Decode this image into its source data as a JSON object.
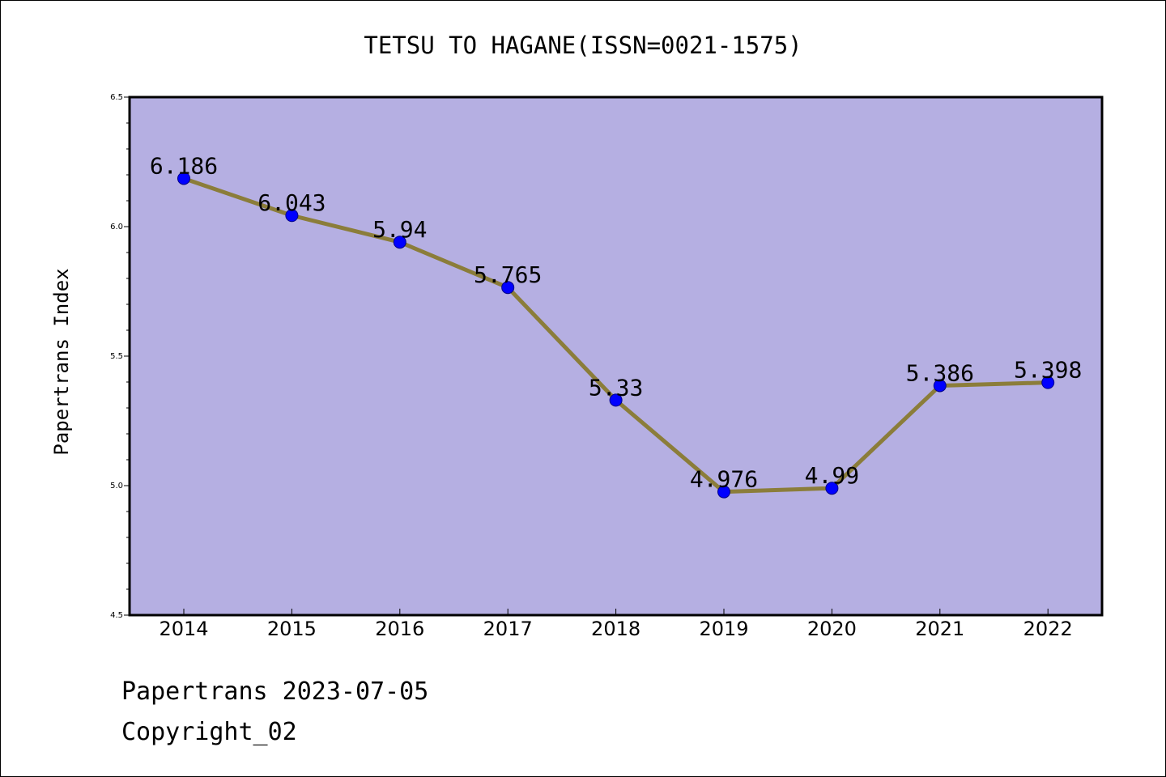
{
  "chart_data": {
    "type": "line",
    "title": "TETSU TO HAGANE(ISSN=0021-1575)",
    "ylabel": "Papertrans Index",
    "xlabel": "",
    "categories": [
      "2014",
      "2015",
      "2016",
      "2017",
      "2018",
      "2019",
      "2020",
      "2021",
      "2022"
    ],
    "values": [
      6.186,
      6.043,
      5.94,
      5.765,
      5.33,
      4.976,
      4.99,
      5.386,
      5.398
    ],
    "data_labels": [
      "6.186",
      "6.043",
      "5.94",
      "5.765",
      "5.33",
      "4.976",
      "4.99",
      "5.386",
      "5.398"
    ],
    "ylim": [
      4.5,
      6.5
    ],
    "yticks": [
      "4.5",
      "5.0",
      "5.5",
      "6.0",
      "6.5"
    ],
    "grid": false,
    "line_color": "#8b7d3a",
    "marker_color": "#0000ff",
    "plot_background": "#b5afe2"
  },
  "footer": {
    "line1": "Papertrans 2023-07-05",
    "line2": "Copyright_02"
  }
}
